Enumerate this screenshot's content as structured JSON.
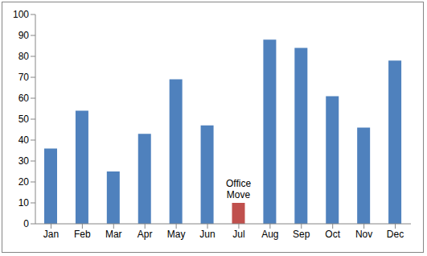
{
  "chart_data": {
    "type": "bar",
    "categories": [
      "Jan",
      "Feb",
      "Mar",
      "Apr",
      "May",
      "Jun",
      "Jul",
      "Aug",
      "Sep",
      "Oct",
      "Nov",
      "Dec"
    ],
    "values": [
      36,
      54,
      25,
      43,
      69,
      47,
      10,
      88,
      84,
      61,
      46,
      78
    ],
    "colors": [
      "#4f81bd",
      "#4f81bd",
      "#4f81bd",
      "#4f81bd",
      "#4f81bd",
      "#4f81bd",
      "#c0504d",
      "#4f81bd",
      "#4f81bd",
      "#4f81bd",
      "#4f81bd",
      "#4f81bd"
    ],
    "ylim": [
      0,
      100
    ],
    "yticks": [
      0,
      10,
      20,
      30,
      40,
      50,
      60,
      70,
      80,
      90,
      100
    ],
    "grid": false,
    "annotations": [
      {
        "x": "Jul",
        "text": "Office Move"
      }
    ]
  }
}
